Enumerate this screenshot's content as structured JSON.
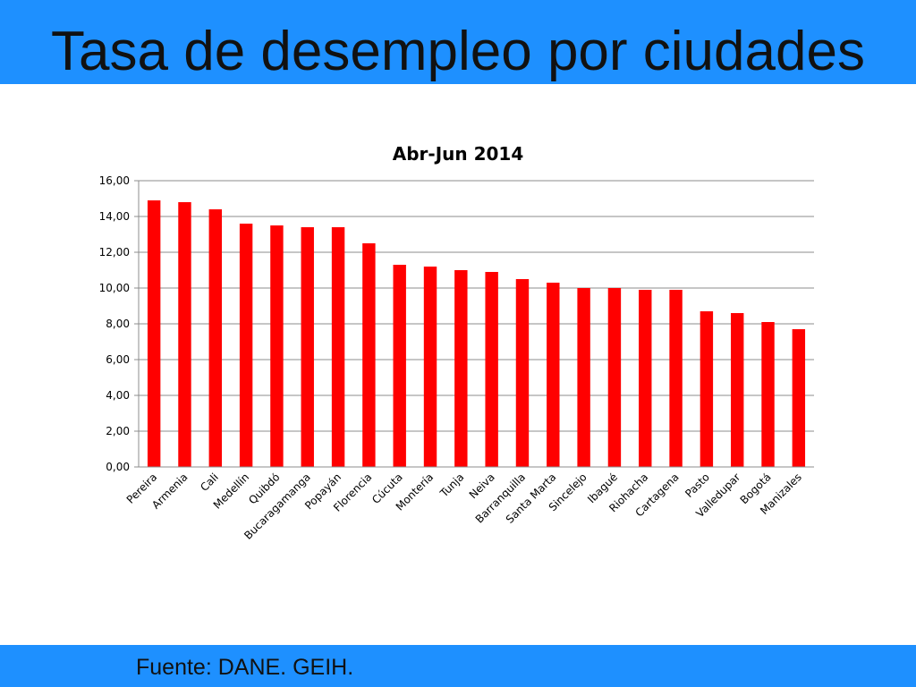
{
  "slide": {
    "title": "Tasa de desempleo por ciudades",
    "source": "Fuente: DANE. GEIH.",
    "bar_color": "#1e90ff"
  },
  "chart_data": {
    "type": "bar",
    "title": "Abr-Jun 2014",
    "xlabel": "",
    "ylabel": "",
    "ylim": [
      0,
      16
    ],
    "yticks": [
      0,
      2,
      4,
      6,
      8,
      10,
      12,
      14,
      16
    ],
    "ytick_labels": [
      "0,00",
      "2,00",
      "4,00",
      "6,00",
      "8,00",
      "10,00",
      "12,00",
      "14,00",
      "16,00"
    ],
    "grid": true,
    "legend": "none",
    "bar_color": "#ff0000",
    "categories": [
      "Pereira",
      "Armenia",
      "Cali",
      "Medellín",
      "Quibdó",
      "Bucaragamanga",
      "Popayán",
      "Florencia",
      "Cúcuta",
      "Montería",
      "Tunja",
      "Neiva",
      "Barranquilla",
      "Santa Marta",
      "Sincelejo",
      "Ibagué",
      "Riohacha",
      "Cartagena",
      "Pasto",
      "Valledupar",
      "Bogotá",
      "Manizales"
    ],
    "values": [
      14.9,
      14.8,
      14.4,
      13.6,
      13.5,
      13.4,
      13.4,
      12.5,
      11.3,
      11.2,
      11.0,
      10.9,
      10.5,
      10.3,
      10.0,
      10.0,
      9.9,
      9.9,
      8.7,
      8.6,
      8.1,
      7.7
    ]
  }
}
